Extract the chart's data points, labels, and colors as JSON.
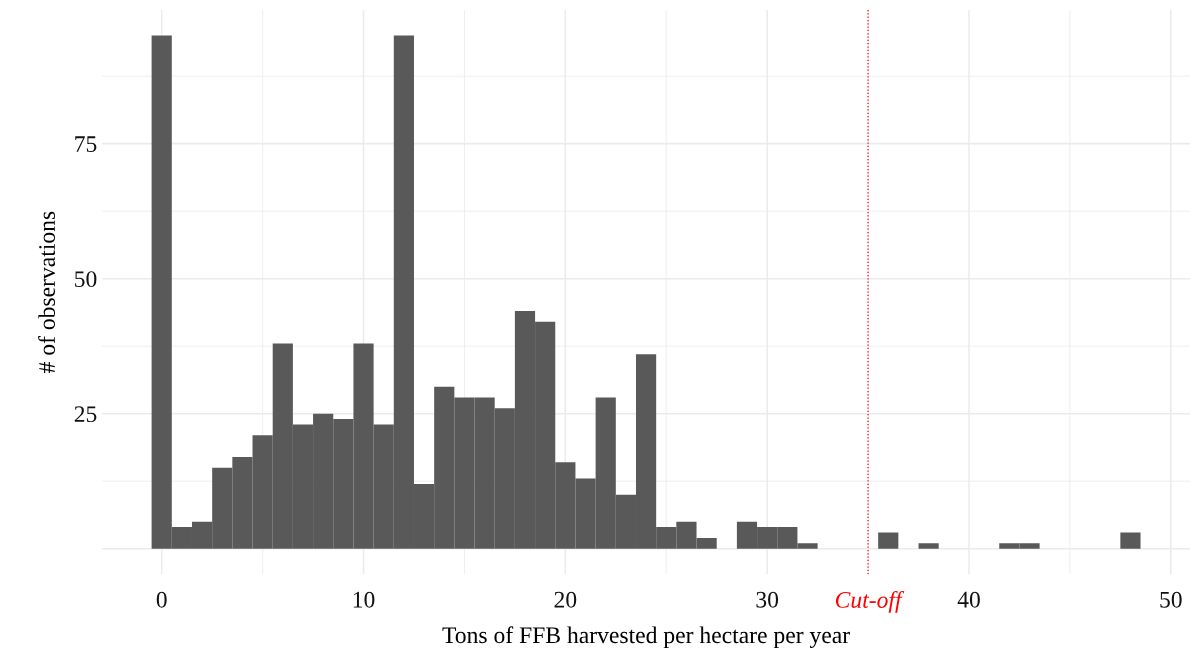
{
  "chart_data": {
    "type": "histogram",
    "xlabel": "Tons of FFB harvested per hectare per year",
    "ylabel": "# of observations",
    "bins": [
      -0.5,
      0.5,
      1.5,
      2.5,
      3.5,
      4.5,
      5.5,
      6.5,
      7.5,
      8.5,
      9.5,
      10.5,
      11.5,
      12.5,
      13.5,
      14.5,
      15.5,
      16.5,
      17.5,
      18.5,
      19.5,
      20.5,
      21.5,
      22.5,
      23.5,
      24.5,
      25.5,
      26.5,
      27.5,
      28.5,
      29.5,
      30.5,
      31.5,
      32.5,
      33.5,
      34.5,
      35.5,
      36.5,
      37.5,
      38.5,
      39.5,
      40.5,
      41.5,
      42.5,
      43.5,
      44.5,
      45.5,
      46.5,
      47.5,
      48.5
    ],
    "values": [
      95,
      4,
      5,
      15,
      17,
      21,
      38,
      23,
      25,
      24,
      38,
      23,
      95,
      12,
      30,
      28,
      28,
      26,
      44,
      42,
      16,
      13,
      28,
      10,
      36,
      4,
      5,
      2,
      0,
      5,
      4,
      4,
      1,
      0,
      0,
      0,
      3,
      0,
      1,
      0,
      0,
      0,
      1,
      1,
      0,
      0,
      0,
      0,
      3
    ],
    "color": "#595959",
    "xlim": [
      -2.95,
      50.95
    ],
    "xticks": [
      0,
      10,
      20,
      30,
      40,
      50
    ],
    "ylim": [
      -4.75,
      99.75
    ],
    "yticks": [
      {
        "value": 0,
        "label": null
      },
      25,
      50,
      75
    ],
    "grid": true,
    "ref_lines": [
      {
        "axis": "x",
        "value": 35,
        "label": "Cut-off",
        "color": "#ff0000",
        "line_style": "dotted"
      }
    ]
  }
}
